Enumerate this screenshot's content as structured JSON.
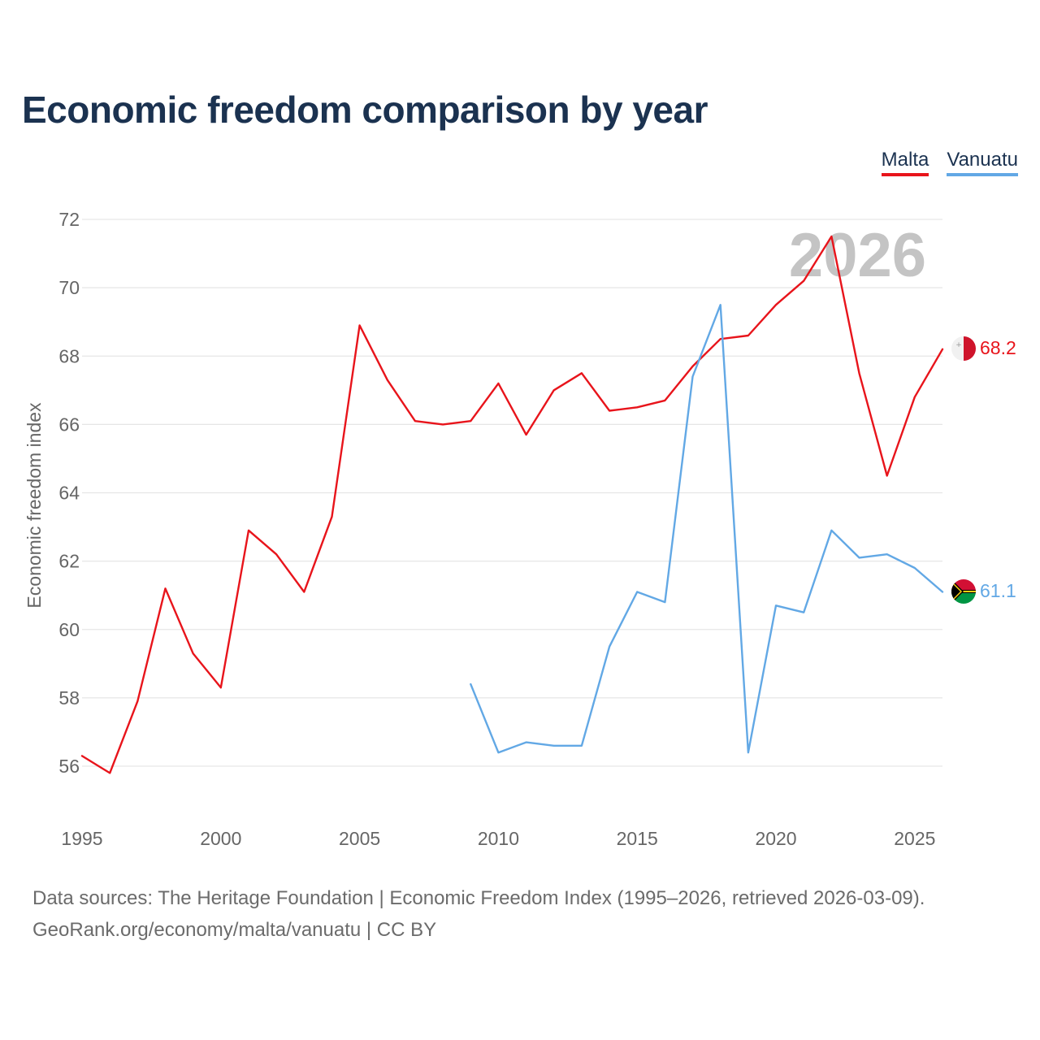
{
  "title": "Economic freedom comparison by year",
  "colors": {
    "malta": "#e8141b",
    "vanuatu": "#62a8e5",
    "grid": "#e6e6e6",
    "axis_text": "#666666",
    "year_watermark": "#c4c4c4"
  },
  "chart_data": {
    "type": "line",
    "title": "Economic freedom comparison by year",
    "xlabel": "",
    "ylabel": "Economic freedom index",
    "xlim": [
      1995,
      2026
    ],
    "ylim": [
      54.5,
      72
    ],
    "x_ticks": [
      1995,
      2000,
      2005,
      2010,
      2015,
      2020,
      2025
    ],
    "y_ticks": [
      56,
      58,
      60,
      62,
      64,
      66,
      68,
      70,
      72
    ],
    "year_label": "2026",
    "legend_position": "top-right",
    "series": [
      {
        "name": "Malta",
        "color": "#e8141b",
        "end_label": "68.2",
        "points": [
          [
            1995,
            56.3
          ],
          [
            1996,
            55.8
          ],
          [
            1997,
            57.9
          ],
          [
            1998,
            61.2
          ],
          [
            1999,
            59.3
          ],
          [
            2000,
            58.3
          ],
          [
            2001,
            62.9
          ],
          [
            2002,
            62.2
          ],
          [
            2003,
            61.1
          ],
          [
            2004,
            63.3
          ],
          [
            2005,
            68.9
          ],
          [
            2006,
            67.3
          ],
          [
            2007,
            66.1
          ],
          [
            2008,
            66.0
          ],
          [
            2009,
            66.1
          ],
          [
            2010,
            67.2
          ],
          [
            2011,
            65.7
          ],
          [
            2012,
            67.0
          ],
          [
            2013,
            67.5
          ],
          [
            2014,
            66.4
          ],
          [
            2015,
            66.5
          ],
          [
            2016,
            66.7
          ],
          [
            2017,
            67.7
          ],
          [
            2018,
            68.5
          ],
          [
            2019,
            68.6
          ],
          [
            2020,
            69.5
          ],
          [
            2021,
            70.2
          ],
          [
            2022,
            71.5
          ],
          [
            2023,
            67.5
          ],
          [
            2024,
            64.5
          ],
          [
            2025,
            66.8
          ],
          [
            2026,
            68.2
          ]
        ]
      },
      {
        "name": "Vanuatu",
        "color": "#62a8e5",
        "end_label": "61.1",
        "points": [
          [
            2009,
            58.4
          ],
          [
            2010,
            56.4
          ],
          [
            2011,
            56.7
          ],
          [
            2012,
            56.6
          ],
          [
            2013,
            56.6
          ],
          [
            2014,
            59.5
          ],
          [
            2015,
            61.1
          ],
          [
            2016,
            60.8
          ],
          [
            2017,
            67.4
          ],
          [
            2018,
            69.5
          ],
          [
            2019,
            56.4
          ],
          [
            2020,
            60.7
          ],
          [
            2021,
            60.5
          ],
          [
            2022,
            62.9
          ],
          [
            2023,
            62.1
          ],
          [
            2024,
            62.2
          ],
          [
            2025,
            61.8
          ],
          [
            2026,
            61.1
          ]
        ]
      }
    ]
  },
  "footer": {
    "source_line": "Data sources: The Heritage Foundation | Economic Freedom Index (1995–2026, retrieved 2026-03-09).",
    "credit_line": "GeoRank.org/economy/malta/vanuatu | CC BY"
  }
}
